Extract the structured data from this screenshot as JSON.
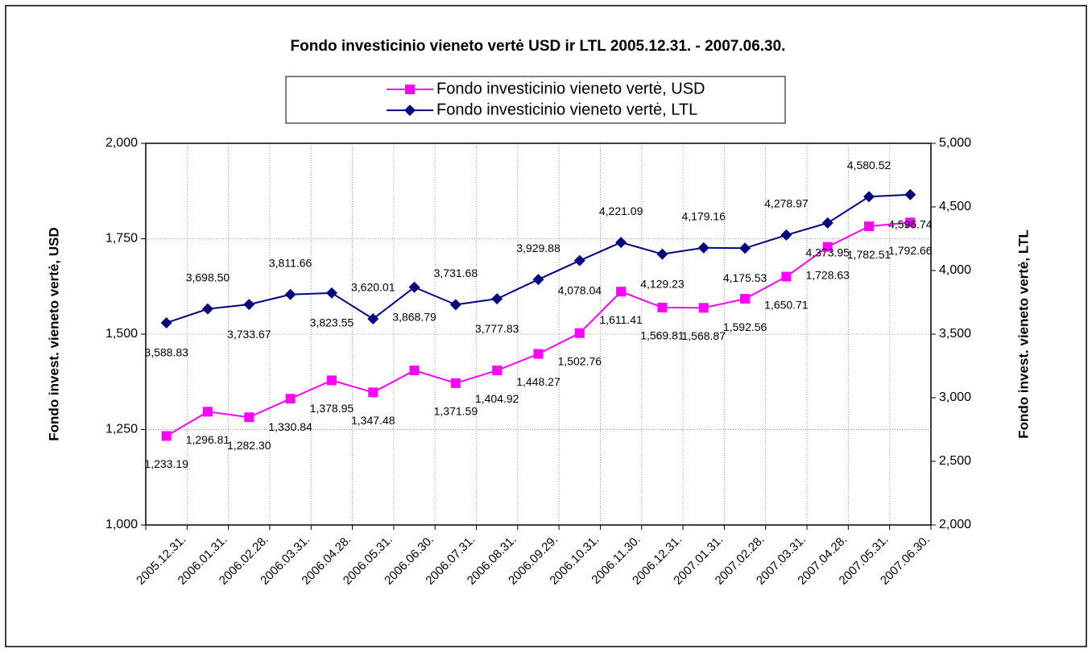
{
  "chart_data": {
    "type": "line",
    "title": "Fondo investicinio vieneto vertė USD ir LTL 2005.12.31. - 2007.06.30.",
    "ylabel": "Fondo invest. vieneto vertė, USD",
    "y2label": "Fondo invest. vieneto vertė, LTL",
    "categories": [
      "2005.12.31.",
      "2006.01.31.",
      "2006.02.28.",
      "2006.03.31.",
      "2006.04.28.",
      "2006.05.31.",
      "2006.06.30.",
      "2006.07.31.",
      "2006.08.31.",
      "2006.09.29.",
      "2006.10.31.",
      "2006.11.30.",
      "2006.12.31.",
      "2007.01.31.",
      "2007.02.28.",
      "2007.03.31.",
      "2007.04.28.",
      "2007.05.31.",
      "2007.06.30."
    ],
    "series": [
      {
        "name": "Fondo investicinio vieneto vertė, USD",
        "color": "#ff00ff",
        "marker": "square",
        "values": [
          1233.19,
          1296.81,
          1282.3,
          1330.84,
          1378.95,
          1347.48,
          1405,
          1371.59,
          1404.92,
          1448.27,
          1502.76,
          1611.41,
          1569.81,
          1568.87,
          1592.56,
          1650.71,
          1728.63,
          1782.51,
          1792.66
        ],
        "value_labels": [
          "1,233.19",
          "1,296.81",
          "1,282.30",
          "1,330.84",
          "1,378.95",
          "1,347.48",
          null,
          "1,371.59",
          "1,404.92",
          "1,448.27",
          "1,502.76",
          "1,611.41",
          "1,569.81",
          "1,568.87",
          "1,592.56",
          "1,650.71",
          "1,728.63",
          "1,782.51",
          "1,792.66"
        ]
      },
      {
        "name": "Fondo investicinio vieneto vertė, LTL",
        "color": "#000080",
        "marker": "diamond",
        "axis": "y2",
        "values": [
          3588.83,
          3698.5,
          3733.67,
          3811.66,
          3823.55,
          3620.01,
          3868.79,
          3731.68,
          3777.83,
          3929.88,
          4078.04,
          4221.09,
          4129.23,
          4179.16,
          4175.53,
          4278.97,
          4373.95,
          4580.52,
          4596.74
        ],
        "value_labels": [
          "3,588.83",
          "3,698.50",
          "3,733.67",
          "3,811.66",
          "3,823.55",
          "3,620.01",
          "3,868.79",
          "3,731.68",
          "3,777.83",
          "3,929.88",
          "4,078.04",
          "4,221.09",
          "4,129.23",
          "4,179.16",
          "4,175.53",
          "4,278.97",
          "4,373.95",
          "4,580.52",
          "4,596.74"
        ]
      }
    ],
    "ylim": [
      1000,
      2000
    ],
    "yticks": [
      {
        "value": 1000,
        "label": "1,000"
      },
      {
        "value": 1250,
        "label": "1,250"
      },
      {
        "value": 1500,
        "label": "1,500"
      },
      {
        "value": 1750,
        "label": "1,750"
      },
      {
        "value": 2000,
        "label": "2,000"
      }
    ],
    "y2lim": [
      2000,
      5000
    ],
    "y2ticks": [
      {
        "value": 2000,
        "label": "2,000"
      },
      {
        "value": 2500,
        "label": "2,500"
      },
      {
        "value": 3000,
        "label": "3,000"
      },
      {
        "value": 3500,
        "label": "3,500"
      },
      {
        "value": 4000,
        "label": "4,000"
      },
      {
        "value": 4500,
        "label": "4,500"
      },
      {
        "value": 5000,
        "label": "5,000"
      }
    ],
    "grid": true,
    "legend": "top"
  }
}
